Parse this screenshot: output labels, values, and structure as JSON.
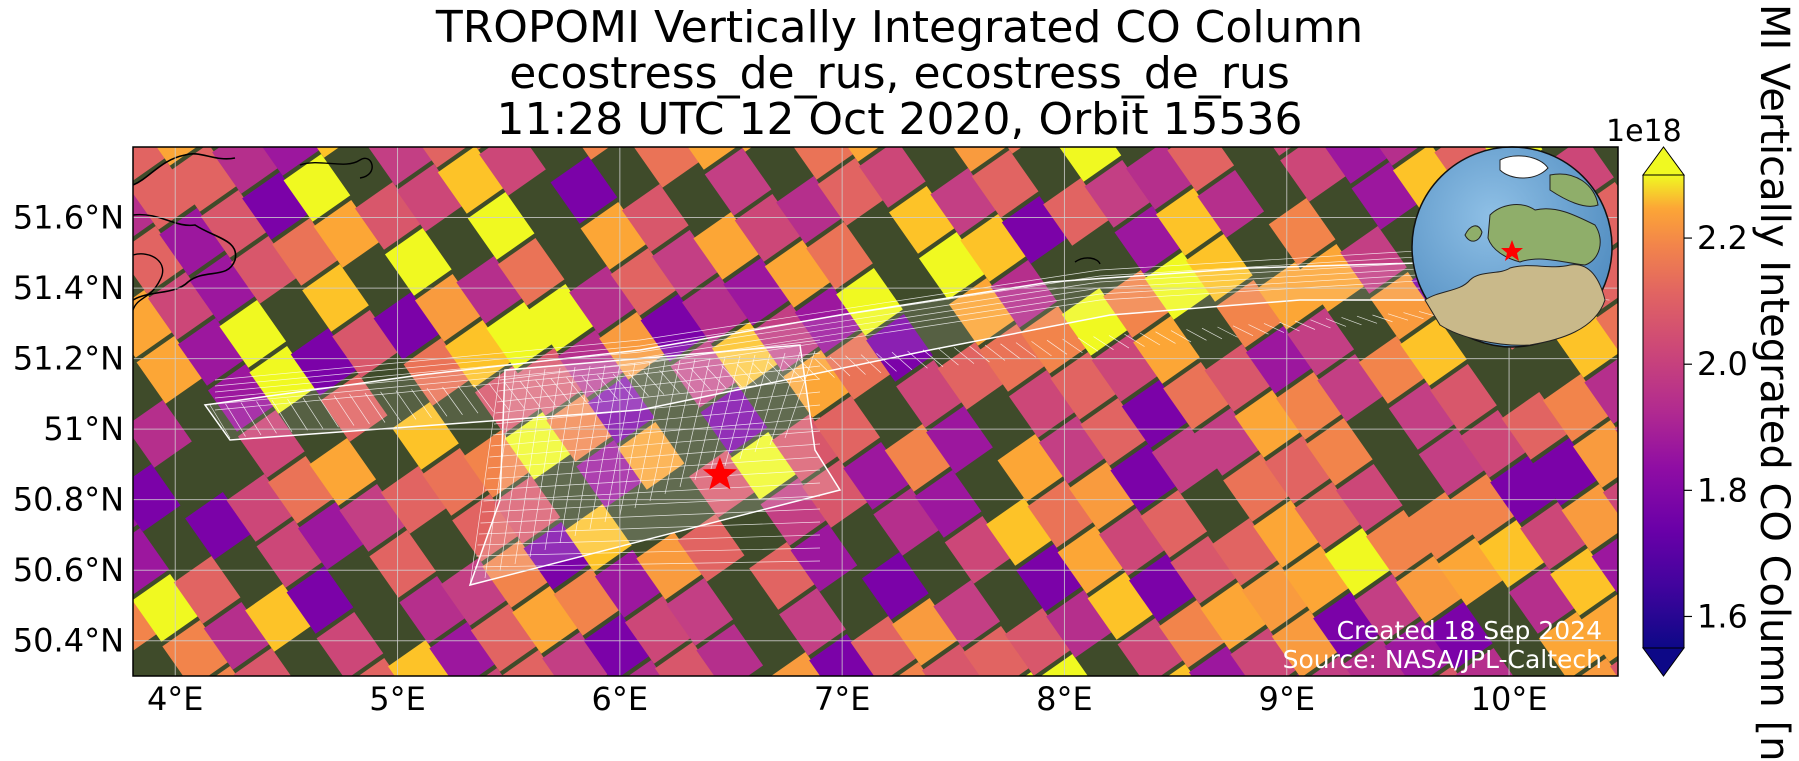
{
  "title": {
    "line1": "TROPOMI Vertically Integrated CO Column",
    "line2": "ecostress_de_rus, ecostress_de_rus",
    "line3": "11:28 UTC 12 Oct 2020, Orbit 15536"
  },
  "axes": {
    "x_ticks": [
      "4°E",
      "5°E",
      "6°E",
      "7°E",
      "8°E",
      "9°E",
      "10°E"
    ],
    "x_values": [
      4,
      5,
      6,
      7,
      8,
      9,
      10
    ],
    "y_ticks": [
      "51.6°N",
      "51.4°N",
      "51.2°N",
      "51°N",
      "50.8°N",
      "50.6°N",
      "50.4°N"
    ],
    "y_values": [
      51.6,
      51.4,
      51.2,
      51.0,
      50.8,
      50.6,
      50.4
    ],
    "lon_range": [
      3.81,
      10.49
    ],
    "lat_range": [
      50.3,
      51.8
    ],
    "grid": true
  },
  "colorbar": {
    "label": "MI Vertically Integrated CO Column [n",
    "multiplier": "1e18",
    "tick_labels": [
      "2.2",
      "2.0",
      "1.8",
      "1.6"
    ],
    "tick_values": [
      2.2,
      2.0,
      1.8,
      1.6
    ],
    "vmin": 1.55,
    "vmax": 2.3,
    "extend": "both",
    "colormap": "plasma"
  },
  "annotations": {
    "created": "Created 18 Sep 2024",
    "source": "Source: NASA/JPL-Caltech"
  },
  "marker": {
    "lon": 6.45,
    "lat": 50.87,
    "color": "#ff0000",
    "icon": "star-icon"
  },
  "inset": {
    "icon": "globe-icon",
    "ocean_color": "#6fa7d4",
    "land_color": "#9db77a",
    "marker_color": "#ff0000"
  },
  "colors": {
    "land_background": "#3f4b2a",
    "grid_line": "#cfcfcf",
    "footprint_line": "#ffffff"
  }
}
